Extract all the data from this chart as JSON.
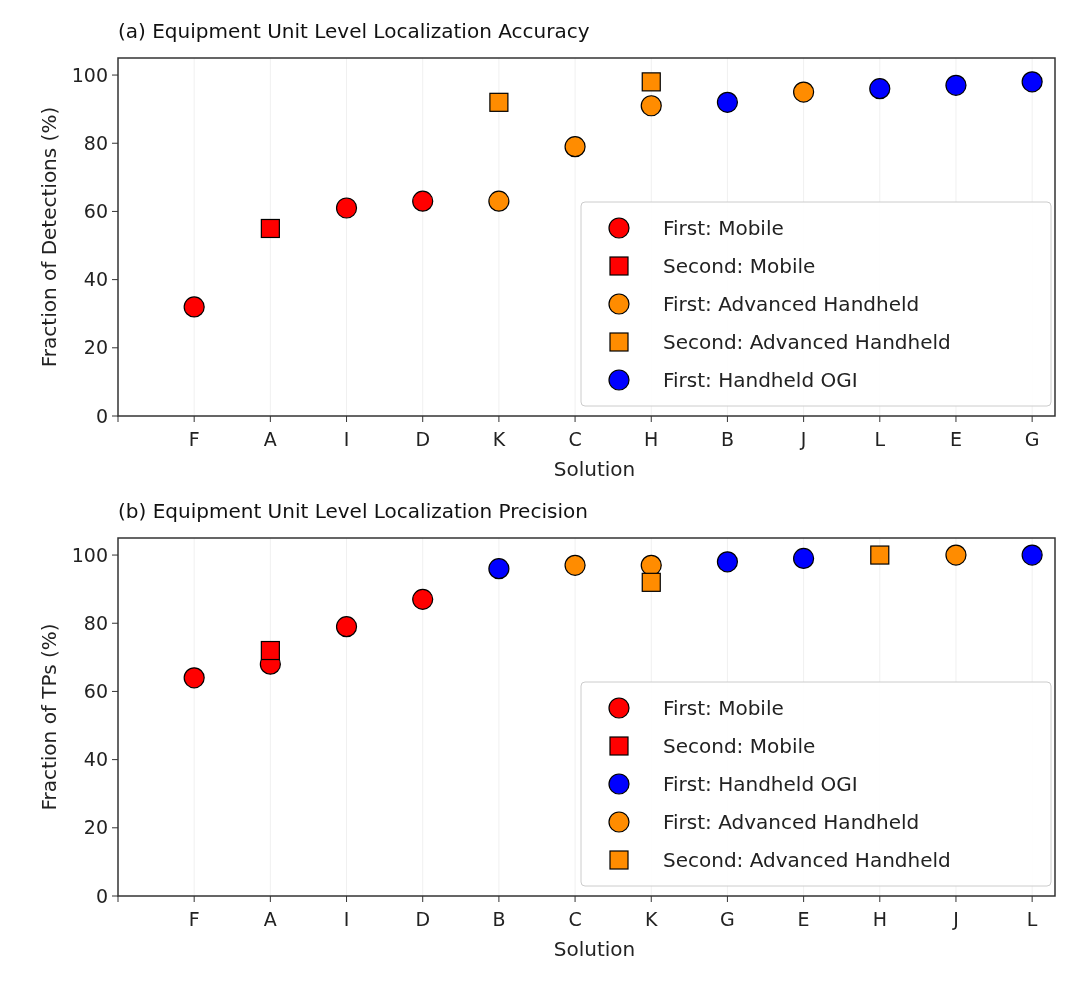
{
  "chart_data": [
    {
      "type": "scatter",
      "title": "(a) Equipment Unit Level Localization Accuracy",
      "xlabel": "Solution",
      "ylabel": "Fraction of Detections (%)",
      "categories": [
        "F",
        "A",
        "I",
        "D",
        "K",
        "C",
        "H",
        "B",
        "J",
        "L",
        "E",
        "G"
      ],
      "ylim": [
        0,
        105
      ],
      "yticks": [
        0,
        20,
        40,
        60,
        80,
        100
      ],
      "grid": "x",
      "legend": "bottom right",
      "series": [
        {
          "name": "First: Mobile",
          "color": "#ff0000",
          "marker": "circle",
          "x": [
            "F",
            "I",
            "D"
          ],
          "values": [
            32,
            61,
            63
          ]
        },
        {
          "name": "Second: Mobile",
          "color": "#ff0000",
          "marker": "square",
          "x": [
            "A"
          ],
          "values": [
            55
          ]
        },
        {
          "name": "First: Advanced Handheld",
          "color": "#ff8c00",
          "marker": "circle",
          "x": [
            "K",
            "C",
            "H",
            "J"
          ],
          "values": [
            63,
            79,
            91,
            95
          ]
        },
        {
          "name": "Second: Advanced Handheld",
          "color": "#ff8c00",
          "marker": "square",
          "x": [
            "K",
            "H"
          ],
          "values": [
            92,
            98
          ]
        },
        {
          "name": "First: Handheld OGI",
          "color": "#0000ff",
          "marker": "circle",
          "x": [
            "B",
            "L",
            "E",
            "G"
          ],
          "values": [
            92,
            96,
            97,
            98
          ]
        }
      ]
    },
    {
      "type": "scatter",
      "title": "(b) Equipment Unit Level Localization Precision",
      "xlabel": "Solution",
      "ylabel": "Fraction of TPs (%)",
      "categories": [
        "F",
        "A",
        "I",
        "D",
        "B",
        "C",
        "K",
        "G",
        "E",
        "H",
        "J",
        "L"
      ],
      "ylim": [
        0,
        105
      ],
      "yticks": [
        0,
        20,
        40,
        60,
        80,
        100
      ],
      "grid": "x",
      "legend": "bottom right",
      "series": [
        {
          "name": "First: Mobile",
          "color": "#ff0000",
          "marker": "circle",
          "x": [
            "F",
            "A",
            "I",
            "D"
          ],
          "values": [
            64,
            68,
            79,
            87
          ]
        },
        {
          "name": "Second: Mobile",
          "color": "#ff0000",
          "marker": "square",
          "x": [
            "A"
          ],
          "values": [
            72
          ]
        },
        {
          "name": "First: Handheld OGI",
          "color": "#0000ff",
          "marker": "circle",
          "x": [
            "B",
            "G",
            "E",
            "L"
          ],
          "values": [
            96,
            98,
            99,
            100
          ]
        },
        {
          "name": "First: Advanced Handheld",
          "color": "#ff8c00",
          "marker": "circle",
          "x": [
            "C",
            "K",
            "J"
          ],
          "values": [
            97,
            97,
            100
          ]
        },
        {
          "name": "Second: Advanced Handheld",
          "color": "#ff8c00",
          "marker": "square",
          "x": [
            "K",
            "H"
          ],
          "values": [
            92,
            100
          ]
        }
      ]
    }
  ]
}
